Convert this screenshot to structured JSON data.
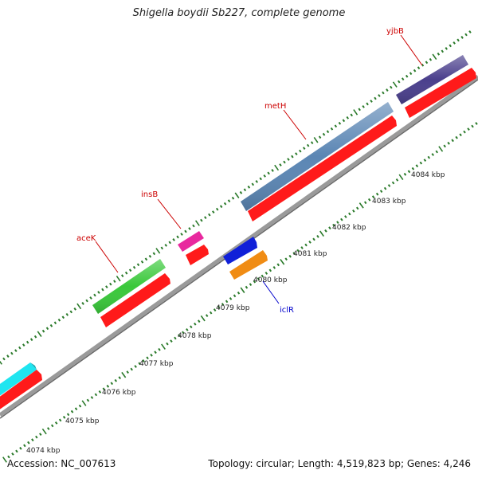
{
  "title": "Shigella boydii Sb227, complete genome",
  "accession": "Accession: NC_007613",
  "summary": "Topology: circular; Length: 4,519,823 bp; Genes: 4,246",
  "ticks": [
    {
      "label": "4074 kbp"
    },
    {
      "label": "4075 kbp"
    },
    {
      "label": "4076 kbp"
    },
    {
      "label": "4077 kbp"
    },
    {
      "label": "4078 kbp"
    },
    {
      "label": "4079 kbp"
    },
    {
      "label": "4080 kbp"
    },
    {
      "label": "4081 kbp"
    },
    {
      "label": "4082 kbp"
    },
    {
      "label": "4083 kbp"
    },
    {
      "label": "4084 kbp"
    }
  ],
  "genes": [
    {
      "name": "aceK",
      "color": "#cc0000"
    },
    {
      "name": "insB",
      "color": "#cc0000"
    },
    {
      "name": "metH",
      "color": "#cc0000"
    },
    {
      "name": "yjbB",
      "color": "#cc0000"
    },
    {
      "name": "iclR",
      "color": "#0000cc"
    }
  ],
  "colors": {
    "cds": "#ff1a1a",
    "cyan": "#1fe5f0",
    "green": "#39c83a",
    "magenta": "#e8289e",
    "steelblue": "#5b86b4",
    "purple": "#4a3f8c",
    "blue": "#1020d8",
    "orange": "#f08c14",
    "backbone": "#9a9a9a",
    "tickmark": "#2a7a2a"
  }
}
